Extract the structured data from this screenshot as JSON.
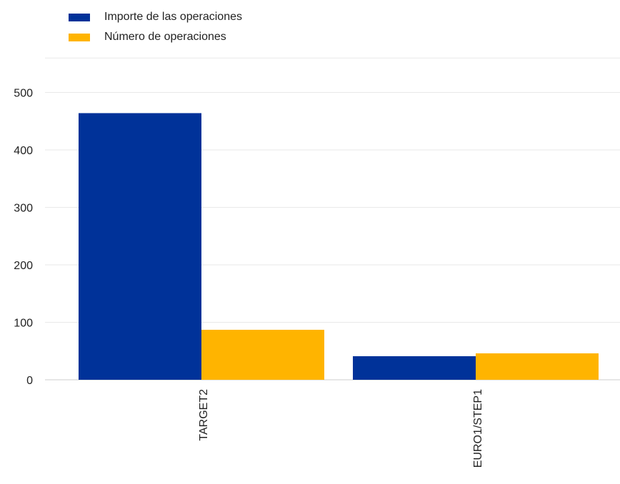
{
  "colors": {
    "series1": "#003299",
    "series2": "#ffb400",
    "grid": "#e9e9e9",
    "axis": "#cccccc"
  },
  "legend": {
    "items": [
      {
        "label": "Importe de las operaciones"
      },
      {
        "label": "Número de operaciones"
      }
    ]
  },
  "chart_data": {
    "type": "bar",
    "categories": [
      "TARGET2",
      "EURO1/STEP1"
    ],
    "series": [
      {
        "name": "Importe de las operaciones",
        "values": [
          464,
          41
        ]
      },
      {
        "name": "Número de operaciones",
        "values": [
          87,
          46
        ]
      }
    ],
    "y_ticks": [
      0,
      100,
      200,
      300,
      400,
      500
    ],
    "ylim": [
      0,
      560
    ],
    "grid": true,
    "legend_position": "top-left"
  }
}
